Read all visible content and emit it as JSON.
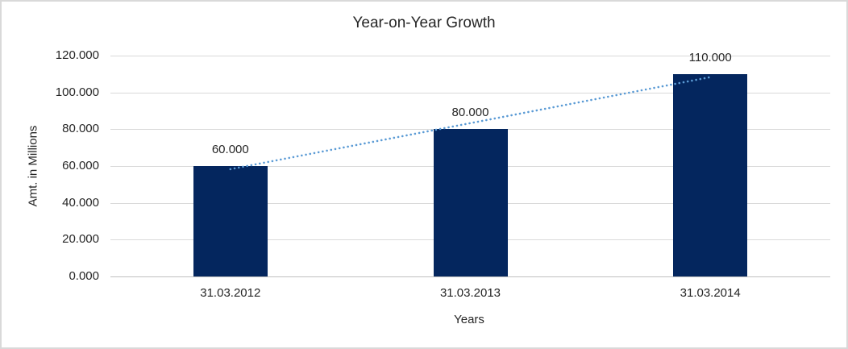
{
  "chart_data": {
    "type": "bar",
    "title": "Year-on-Year Growth",
    "xlabel": "Years",
    "ylabel": "Amt. in Millions",
    "categories": [
      "31.03.2012",
      "31.03.2013",
      "31.03.2014"
    ],
    "values": [
      60,
      80,
      110
    ],
    "data_labels": [
      "60.000",
      "80.000",
      "110.000"
    ],
    "ylim": [
      0,
      120
    ],
    "ytick_interval": 20,
    "ytick_labels": [
      "0.000",
      "20.000",
      "40.000",
      "60.000",
      "80.000",
      "100.000",
      "120.000"
    ],
    "grid": true,
    "legend": "none",
    "colors": {
      "bar": "#04265e",
      "trendline": "#5b9bd5",
      "gridline": "#d9d9d9",
      "axis_line": "#bfbfbf",
      "text": "#262626",
      "frame_border": "#d9d9d9"
    },
    "trendline": {
      "style": "dotted",
      "color": "#5b9bd5",
      "start_value": 58.3,
      "end_value": 108.3
    }
  }
}
